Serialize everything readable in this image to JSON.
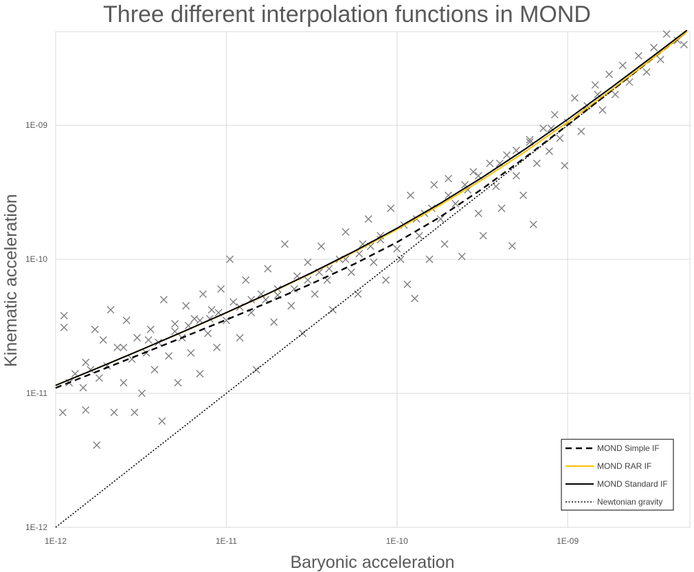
{
  "chart_data": {
    "type": "scatter",
    "title": "Three different interpolation functions in MOND",
    "xlabel": "Baryonic acceleration",
    "ylabel": "Kinematic acceleration",
    "xscale": "log",
    "yscale": "log",
    "xlim": [
      1e-12,
      5.2e-09
    ],
    "ylim": [
      1e-12,
      5e-09
    ],
    "grid": true,
    "legend_position": "bottom-right",
    "x_ticks": [
      {
        "value": 1e-12,
        "label": "1E-12"
      },
      {
        "value": 1e-11,
        "label": "1E-11"
      },
      {
        "value": 1e-10,
        "label": "1E-10"
      },
      {
        "value": 1e-09,
        "label": "1E-09"
      }
    ],
    "y_ticks": [
      {
        "value": 1e-12,
        "label": "1E-12"
      },
      {
        "value": 1e-11,
        "label": "1E-11"
      },
      {
        "value": 1e-10,
        "label": "1E-10"
      },
      {
        "value": 1e-09,
        "label": "1E-09"
      }
    ],
    "curve_x": [
      1e-12,
      1.778e-12,
      3.162e-12,
      5.623e-12,
      1e-11,
      1.778e-11,
      3.162e-11,
      5.623e-11,
      1e-10,
      1.778e-10,
      3.162e-10,
      5.623e-10,
      1e-09,
      1.778e-09,
      3.162e-09,
      5e-09
    ],
    "series": [
      {
        "name": "MOND Simple IF",
        "style": "dashed",
        "color": "#000000",
        "values": [
          1.098e-11,
          1.466e-11,
          1.961e-11,
          2.628e-11,
          3.537e-11,
          4.793e-11,
          6.578e-11,
          9.226e-11,
          1.342e-10,
          2.058e-10,
          3.358e-10,
          5.744e-10,
          1.007e-09,
          1.782e-09,
          3.164e-09,
          5.001e-09
        ]
      },
      {
        "name": "MOND RAR IF",
        "style": "solid",
        "color": "#ffc000",
        "values": [
          1.146e-11,
          1.551e-11,
          2.11e-11,
          2.889e-11,
          3.988e-11,
          5.565e-11,
          7.876e-11,
          1.134e-10,
          1.67e-10,
          2.526e-10,
          3.939e-10,
          6.352e-10,
          1.059e-09,
          1.817e-09,
          3.181e-09,
          5.008e-09
        ]
      },
      {
        "name": "MOND Standard IF",
        "style": "solid",
        "color": "#000000",
        "values": [
          1.147e-11,
          1.552e-11,
          2.112e-11,
          2.894e-11,
          4e-11,
          5.593e-11,
          7.941e-11,
          1.149e-10,
          1.704e-10,
          2.599e-10,
          4.09e-10,
          6.639e-10,
          1.108e-09,
          1.891e-09,
          3.278e-09,
          5.117e-09
        ]
      },
      {
        "name": "Newtonian gravity",
        "style": "dotted",
        "color": "#000000",
        "values": [
          1e-12,
          1.778e-12,
          3.162e-12,
          5.623e-12,
          1e-11,
          1.778e-11,
          3.162e-11,
          5.623e-11,
          1e-10,
          1.778e-10,
          3.162e-10,
          5.623e-10,
          1e-09,
          1.778e-09,
          3.162e-09,
          5e-09
        ]
      }
    ],
    "scatter": {
      "marker": "x",
      "color": "#7f7f7f",
      "points": [
        [
          1.1e-12,
          7.2e-12
        ],
        [
          1.12e-12,
          3.8e-11
        ],
        [
          1.12e-12,
          3.1e-11
        ],
        [
          1.2e-12,
          1.2e-11
        ],
        [
          1.3e-12,
          1.4e-11
        ],
        [
          1.45e-12,
          1.1e-11
        ],
        [
          1.5e-12,
          7.5e-12
        ],
        [
          1.6e-12,
          1.5e-11
        ],
        [
          1.7e-12,
          3e-11
        ],
        [
          1.74e-12,
          4.1e-12
        ],
        [
          1.8e-12,
          1.3e-11
        ],
        [
          1.9e-12,
          2.5e-11
        ],
        [
          2e-12,
          1.6e-11
        ],
        [
          2.1e-12,
          4.2e-11
        ],
        [
          2.2e-12,
          7.2e-12
        ],
        [
          2.3e-12,
          2.2e-11
        ],
        [
          2.5e-12,
          1.2e-11
        ],
        [
          2.6e-12,
          3.5e-11
        ],
        [
          2.8e-12,
          1.8e-11
        ],
        [
          2.9e-12,
          7.2e-12
        ],
        [
          3e-12,
          2.6e-11
        ],
        [
          3.2e-12,
          1e-11
        ],
        [
          3.4e-12,
          2e-11
        ],
        [
          3.6e-12,
          3e-11
        ],
        [
          3.8e-12,
          1.5e-11
        ],
        [
          4e-12,
          2.4e-11
        ],
        [
          4.2e-12,
          6.2e-12
        ],
        [
          4.3e-12,
          5e-11
        ],
        [
          4.6e-12,
          1.9e-11
        ],
        [
          5e-12,
          3.3e-11
        ],
        [
          5.2e-12,
          1.2e-11
        ],
        [
          5.5e-12,
          2.6e-11
        ],
        [
          5.8e-12,
          4.5e-11
        ],
        [
          6.2e-12,
          2e-11
        ],
        [
          6.5e-12,
          3.6e-11
        ],
        [
          7e-12,
          1.4e-11
        ],
        [
          7.3e-12,
          5.5e-11
        ],
        [
          7.8e-12,
          2.8e-11
        ],
        [
          8.2e-12,
          4.2e-11
        ],
        [
          8.8e-12,
          2.2e-11
        ],
        [
          9.3e-12,
          6e-11
        ],
        [
          1e-11,
          3.5e-11
        ],
        [
          1.05e-11,
          1e-10
        ],
        [
          1.1e-11,
          4.8e-11
        ],
        [
          1.2e-11,
          2.6e-11
        ],
        [
          1.3e-11,
          7e-11
        ],
        [
          1.4e-11,
          4e-11
        ],
        [
          1.5e-11,
          1.5e-11
        ],
        [
          1.6e-11,
          5.5e-11
        ],
        [
          1.75e-11,
          8.5e-11
        ],
        [
          1.9e-11,
          3.4e-11
        ],
        [
          2e-11,
          6e-11
        ],
        [
          2.2e-11,
          1.3e-10
        ],
        [
          2.4e-11,
          4.5e-11
        ],
        [
          2.6e-11,
          7.5e-11
        ],
        [
          2.8e-11,
          2.8e-11
        ],
        [
          3e-11,
          9.5e-11
        ],
        [
          3.3e-11,
          5.5e-11
        ],
        [
          3.6e-11,
          1.25e-10
        ],
        [
          3.9e-11,
          7e-11
        ],
        [
          4.2e-11,
          4.2e-11
        ],
        [
          4.6e-11,
          1e-10
        ],
        [
          5e-11,
          1.6e-10
        ],
        [
          5.4e-11,
          8e-11
        ],
        [
          5.9e-11,
          5.5e-11
        ],
        [
          6.3e-11,
          1.3e-10
        ],
        [
          6.8e-11,
          2e-10
        ],
        [
          7.3e-11,
          9.5e-11
        ],
        [
          8e-11,
          1.5e-10
        ],
        [
          8.6e-11,
          7e-11
        ],
        [
          9.2e-11,
          2.4e-10
        ],
        [
          1e-10,
          1.2e-10
        ],
        [
          1.05e-10,
          1e-10
        ],
        [
          1.1e-10,
          1.8e-10
        ],
        [
          1.15e-10,
          6.5e-11
        ],
        [
          1.2e-10,
          3e-10
        ],
        [
          1.27e-10,
          5.1e-11
        ],
        [
          1.35e-10,
          1.5e-10
        ],
        [
          1.45e-10,
          2.2e-10
        ],
        [
          1.55e-10,
          1e-10
        ],
        [
          1.65e-10,
          3.6e-10
        ],
        [
          1.8e-10,
          2e-10
        ],
        [
          1.9e-10,
          1.3e-10
        ],
        [
          2e-10,
          4e-10
        ],
        [
          2.2e-10,
          2.6e-10
        ],
        [
          2.4e-10,
          1.05e-10
        ],
        [
          2.6e-10,
          3.3e-10
        ],
        [
          2.8e-10,
          4.5e-10
        ],
        [
          3e-10,
          2.2e-10
        ],
        [
          3.2e-10,
          1.5e-10
        ],
        [
          3.5e-10,
          5.2e-10
        ],
        [
          3.8e-10,
          3.5e-10
        ],
        [
          4.1e-10,
          2.4e-10
        ],
        [
          4.4e-10,
          6e-10
        ],
        [
          4.73e-10,
          1.26e-10
        ],
        [
          5e-10,
          4.2e-10
        ],
        [
          5.5e-10,
          3e-10
        ],
        [
          6e-10,
          7.5e-10
        ],
        [
          6.3e-10,
          1.82e-10
        ],
        [
          6.6e-10,
          5.2e-10
        ],
        [
          7.2e-10,
          9.5e-10
        ],
        [
          7.8e-10,
          6.4e-10
        ],
        [
          8.4e-10,
          1.2e-09
        ],
        [
          9e-10,
          8e-10
        ],
        [
          9.6e-10,
          5e-10
        ],
        [
          1e-09,
          1.05e-09
        ],
        [
          1.1e-09,
          1.6e-09
        ],
        [
          1.2e-09,
          9e-10
        ],
        [
          1.3e-09,
          1.4e-09
        ],
        [
          1.45e-09,
          2e-09
        ],
        [
          1.6e-09,
          1.3e-09
        ],
        [
          1.75e-09,
          2.4e-09
        ],
        [
          1.9e-09,
          1.7e-09
        ],
        [
          2.1e-09,
          2.8e-09
        ],
        [
          2.3e-09,
          2.1e-09
        ],
        [
          2.6e-09,
          3.3e-09
        ],
        [
          2.9e-09,
          2.5e-09
        ],
        [
          3.2e-09,
          3.8e-09
        ],
        [
          3.5e-09,
          3.1e-09
        ],
        [
          3.8e-09,
          4.8e-09
        ],
        [
          4.4e-09,
          4.3e-09
        ],
        [
          4.8e-09,
          4e-09
        ],
        [
          1.5e-12,
          1.7e-11
        ],
        [
          2.5e-12,
          2.2e-11
        ],
        [
          3.5e-12,
          2.5e-11
        ],
        [
          5e-12,
          2.9e-11
        ],
        [
          6e-12,
          3.2e-11
        ],
        [
          7e-12,
          3.5e-11
        ],
        [
          8e-12,
          3.6e-11
        ],
        [
          9e-12,
          4e-11
        ],
        [
          1.2e-11,
          4.4e-11
        ],
        [
          1.4e-11,
          5e-11
        ],
        [
          1.7e-11,
          5e-11
        ],
        [
          2e-11,
          5.4e-11
        ],
        [
          2.5e-11,
          6e-11
        ],
        [
          3e-11,
          7e-11
        ],
        [
          3.5e-11,
          8e-11
        ],
        [
          4e-11,
          8.5e-11
        ],
        [
          5e-11,
          1e-10
        ],
        [
          6e-11,
          1.1e-10
        ],
        [
          7e-11,
          1.25e-10
        ],
        [
          8e-11,
          1.4e-10
        ],
        [
          1.3e-10,
          2e-10
        ],
        [
          1.6e-10,
          2.4e-10
        ],
        [
          2e-10,
          3e-10
        ],
        [
          2.5e-10,
          3.6e-10
        ],
        [
          3e-10,
          4.2e-10
        ],
        [
          4e-10,
          5.2e-10
        ],
        [
          5e-10,
          6.5e-10
        ],
        [
          6e-10,
          7.8e-10
        ],
        [
          8e-10,
          9.5e-10
        ],
        [
          1.5e-09,
          1.7e-09
        ]
      ]
    }
  }
}
